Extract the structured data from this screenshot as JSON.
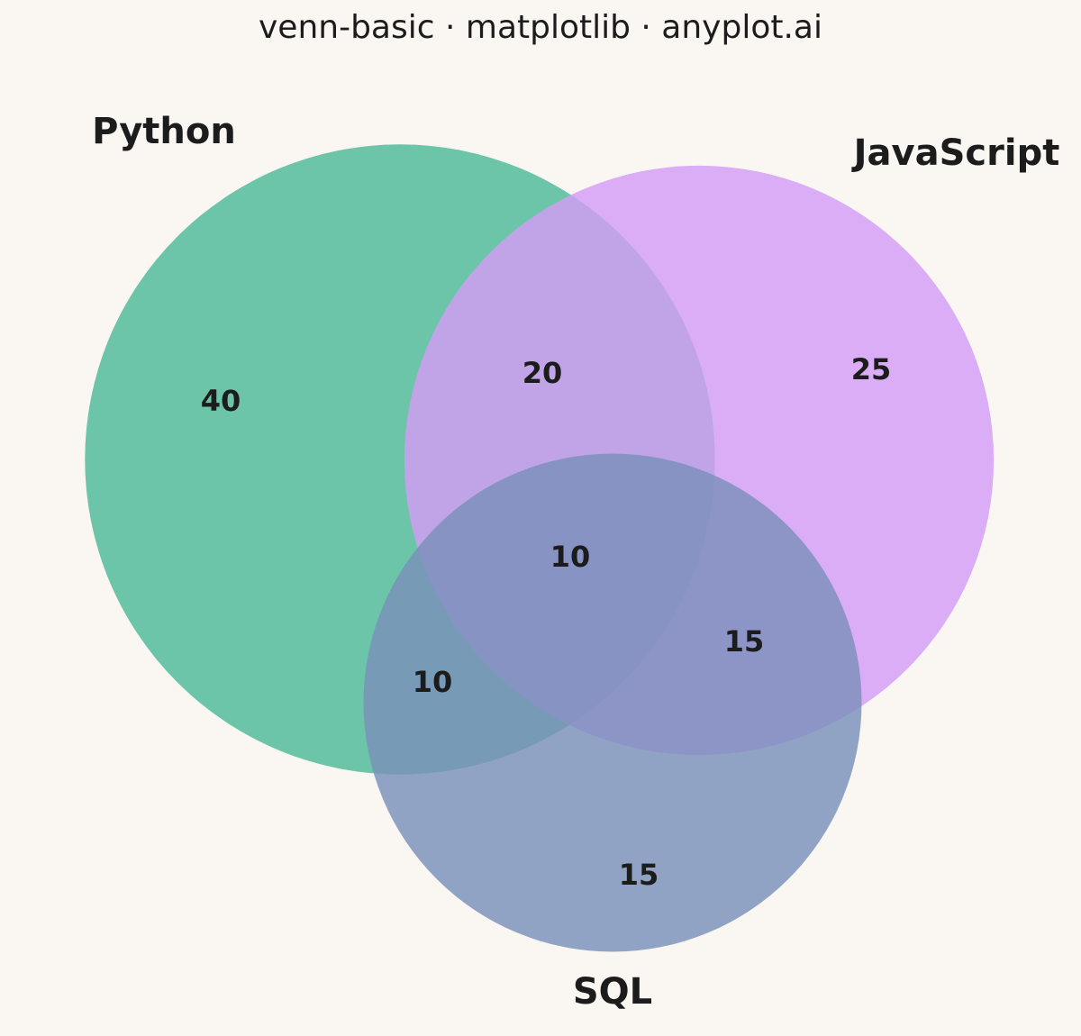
{
  "chart_data": {
    "type": "venn",
    "title": "venn-basic · matplotlib · anyplot.ai",
    "sets": [
      {
        "name": "Python",
        "color": "#4dba97"
      },
      {
        "name": "JavaScript",
        "color": "#d49cf6"
      },
      {
        "name": "SQL",
        "color": "#7a90bb"
      }
    ],
    "subsets": [
      40,
      25,
      20,
      15,
      10,
      15,
      10
    ]
  }
}
